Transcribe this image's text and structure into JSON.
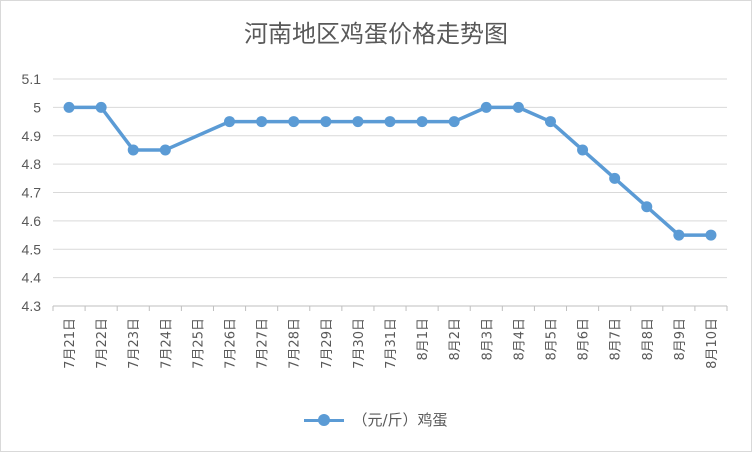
{
  "chart_data": {
    "type": "line",
    "title": "河南地区鸡蛋价格走势图",
    "categories": [
      "7月21日",
      "7月22日",
      "7月23日",
      "7月24日",
      "7月25日",
      "7月26日",
      "7月27日",
      "7月28日",
      "7月29日",
      "7月30日",
      "7月31日",
      "8月1日",
      "8月2日",
      "8月3日",
      "8月4日",
      "8月5日",
      "8月6日",
      "8月7日",
      "8月8日",
      "8月9日",
      "8月10日"
    ],
    "series": [
      {
        "name": "（元/斤）鸡蛋",
        "values": [
          5.0,
          5.0,
          4.85,
          4.85,
          null,
          4.95,
          4.95,
          4.95,
          4.95,
          4.95,
          4.95,
          4.95,
          4.95,
          5.0,
          5.0,
          4.95,
          4.85,
          4.75,
          4.65,
          4.55,
          4.55
        ],
        "color": "#5b9bd5"
      }
    ],
    "y_ticks": [
      "4.3",
      "4.4",
      "4.5",
      "4.6",
      "4.7",
      "4.8",
      "4.9",
      "5",
      "5.1"
    ],
    "ylim": [
      4.3,
      5.1
    ],
    "grid": "horizontal",
    "legend": "bottom-center",
    "span_gaps": true
  }
}
